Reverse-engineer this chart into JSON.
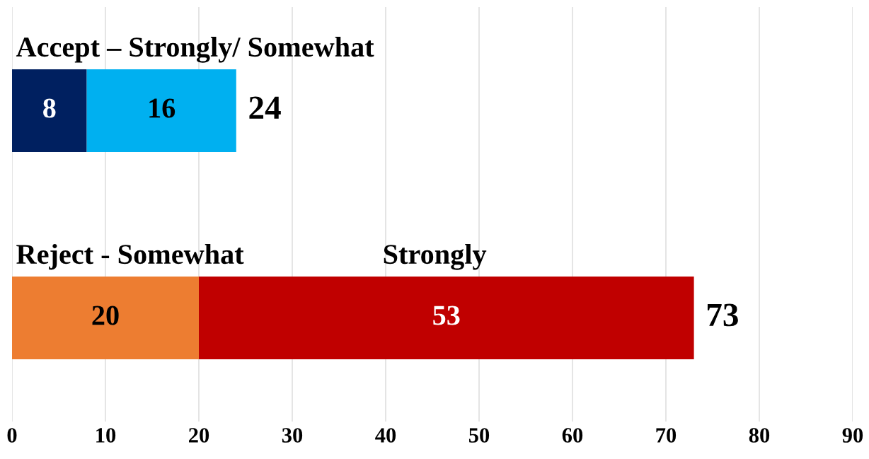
{
  "chart_data": {
    "type": "bar",
    "orientation": "horizontal",
    "stacked": true,
    "categories": [
      "Accept – Strongly/ Somewhat",
      "Reject - Somewhat"
    ],
    "series": [
      {
        "values": [
          8,
          20
        ],
        "colors": [
          "#002060",
          "#ed7d31"
        ]
      },
      {
        "values": [
          16,
          53
        ],
        "colors": [
          "#00b0f0",
          "#c00000"
        ]
      }
    ],
    "data_labels": true,
    "totals": [
      "24",
      "73"
    ],
    "annotations": [
      "Strongly"
    ],
    "xlim": [
      0,
      90
    ],
    "xticks": [
      0,
      10,
      20,
      30,
      40,
      50,
      60,
      70,
      80,
      90
    ],
    "grid": "x",
    "legend": false
  }
}
